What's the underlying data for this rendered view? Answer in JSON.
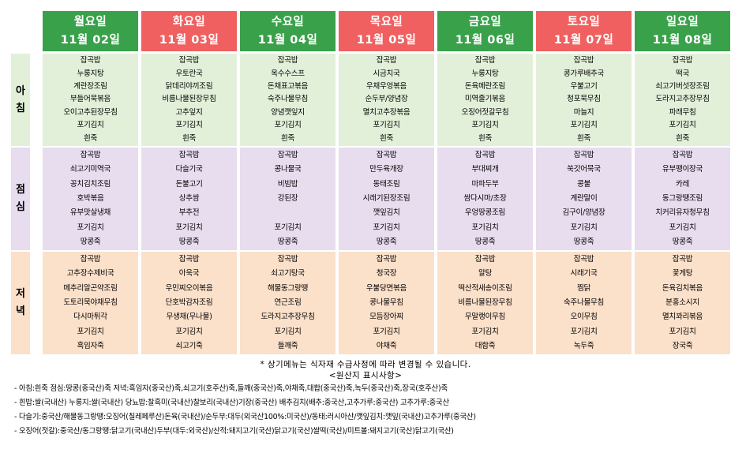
{
  "colors": {
    "weekday_header": "#3aa14b",
    "weekend_header": "#f06060",
    "breakfast_bg": "#e2f0d9",
    "lunch_bg": "#e8dcef",
    "dinner_bg": "#fbe0ca"
  },
  "meal_labels": {
    "breakfast": [
      "아",
      "침"
    ],
    "lunch": [
      "점",
      "심"
    ],
    "dinner": [
      "저",
      "녁"
    ]
  },
  "days": [
    {
      "weekday": "월요일",
      "date": "11월 02일",
      "header": "weekday",
      "breakfast": [
        "잡곡밥",
        "누룽지탕",
        "계란장조림",
        "부들어묵볶음",
        "오이고추된장무침",
        "포기김치",
        "흰죽"
      ],
      "lunch": [
        "잡곡밥",
        "쇠고기미역국",
        "꽁치김치조림",
        "호박볶음",
        "유부맛살냉채",
        "포기김치",
        "땅콩죽"
      ],
      "dinner": [
        "잡곡밥",
        "고추장수제비국",
        "메추리알곤약조림",
        "도토리묵야채무침",
        "다시마튀각",
        "포기김치",
        "흑임자죽"
      ]
    },
    {
      "weekday": "화요일",
      "date": "11월 03일",
      "header": "weekend",
      "breakfast": [
        "잡곡밥",
        "우토란국",
        "닭데리야끼조림",
        "비름나물된장무침",
        "고추잎지",
        "포기김치",
        "흰죽"
      ],
      "lunch": [
        "잡곡밥",
        "다슬기국",
        "돈불고기",
        "상추쌈",
        "부추전",
        "포기김치",
        "땅콩죽"
      ],
      "dinner": [
        "잡곡밥",
        "아욱국",
        "우민찌오이볶음",
        "단호박감자조림",
        "무생채(무나물)",
        "포기김치",
        "쇠고기죽"
      ]
    },
    {
      "weekday": "수요일",
      "date": "11월 04일",
      "header": "weekday",
      "breakfast": [
        "잡곡밥",
        "옥수수스프",
        "돈채표고볶음",
        "숙주나물무침",
        "양념깻잎지",
        "포기김치",
        "흰죽"
      ],
      "lunch": [
        "잡곡밥",
        "콩나물국",
        "비빔밥",
        "강된장",
        "",
        "포기김치",
        "땅콩죽"
      ],
      "dinner": [
        "잡곡밥",
        "쇠고기탕국",
        "해물동그랑땡",
        "연근조림",
        "도라지고추장무침",
        "포기김치",
        "들깨죽"
      ]
    },
    {
      "weekday": "목요일",
      "date": "11월 05일",
      "header": "weekend",
      "breakfast": [
        "잡곡밥",
        "시금치국",
        "우채우엉볶음",
        "순두부/양념장",
        "멸치고추장볶음",
        "포기김치",
        "흰죽"
      ],
      "lunch": [
        "잡곡밥",
        "만두육개장",
        "동태조림",
        "시래기된장조림",
        "깻잎김치",
        "포기김치",
        "땅콩죽"
      ],
      "dinner": [
        "잡곡밥",
        "청국장",
        "우불당면볶음",
        "콩나물무침",
        "모듬장아찌",
        "포기김치",
        "야채죽"
      ]
    },
    {
      "weekday": "금요일",
      "date": "11월 06일",
      "header": "weekday",
      "breakfast": [
        "잡곡밥",
        "누룽지탕",
        "돈육메란조림",
        "미역줄기볶음",
        "오징어젓갈무침",
        "포기김치",
        "흰죽"
      ],
      "lunch": [
        "잡곡밥",
        "부대찌개",
        "마파두부",
        "쌈다시마/초장",
        "우엉땅콩조림",
        "포기김치",
        "땅콩죽"
      ],
      "dinner": [
        "잡곡밥",
        "알탕",
        "떡산적새송이조림",
        "비름나물된장무침",
        "무말랭이무침",
        "포기김치",
        "대합죽"
      ]
    },
    {
      "weekday": "토요일",
      "date": "11월 07일",
      "header": "weekend",
      "breakfast": [
        "잡곡밥",
        "콩가루배추국",
        "우불고기",
        "청포묵무침",
        "마늘지",
        "포기김치",
        "흰죽"
      ],
      "lunch": [
        "잡곡밥",
        "쑥갓어묵국",
        "콩불",
        "계란말이",
        "김구이/양념장",
        "포기김치",
        "땅콩죽"
      ],
      "dinner": [
        "잡곡밥",
        "시래기국",
        "찜닭",
        "숙주나물무침",
        "오이무침",
        "포기김치",
        "녹두죽"
      ]
    },
    {
      "weekday": "일요일",
      "date": "11월 08일",
      "header": "weekday",
      "breakfast": [
        "잡곡밥",
        "떡국",
        "쇠고기버섯장조림",
        "도라지고추장무침",
        "파래무침",
        "포기김치",
        "흰죽"
      ],
      "lunch": [
        "잡곡밥",
        "유부팽이장국",
        "카레",
        "동그랑땡조림",
        "치커리유자청무침",
        "포기김치",
        "땅콩죽"
      ],
      "dinner": [
        "잡곡밥",
        "꽃게탕",
        "돈육김치볶음",
        "분홍소시지",
        "멸치꽈리볶음",
        "포기김치",
        "장국죽"
      ]
    }
  ],
  "notice": "* 상기메뉴는 식자재 수급사정에 따라 변경될 수 있습니다.",
  "origin_title": "<원산지 표시사항>",
  "origin_lines": [
    "- 아침:흰죽  점심:땅콩(중국산)죽  저녁:흑임자(중국산)죽,쇠고기(호주산)죽,들깨(중국산)죽,야채죽,대합(중국산)죽,녹두(중국산)죽,장국(호주산)죽",
    "- 흰밥:쌀(국내산)  누룽지:쌀(국내산)  당뇨밥:찰흑미(국내산)찰보리(국내산)기장(중국산)  배추김치(배추:중국산,고추가루:중국산)  고추가루:중국산",
    "- 다슬기:중국산/해물동그랑땡:오징어(칠레페루산)돈육(국내산)/순두부:대두(외국산100%:미국산)/동태:러시아산/깻잎김치:깻잎(국내산)고추가루(중국산)",
    "- 오징어(젓갈):중국산/동그랑땡:닭고기(국내산)두부(대두:외국산)/산적:돼지고기(국산)닭고기(국산)쌀떡(국산)/미트볼:돼지고기(국산)닭고기(국산)"
  ]
}
